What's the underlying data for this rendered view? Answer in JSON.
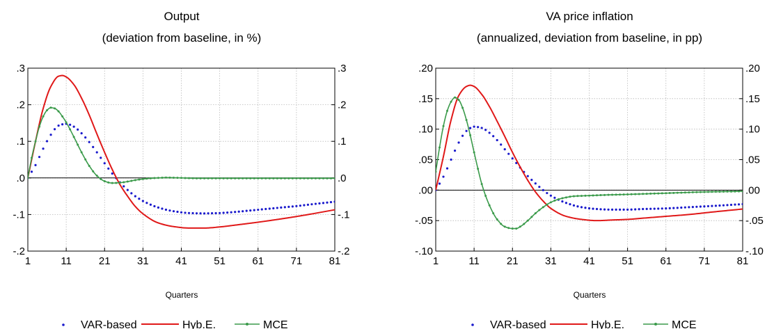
{
  "colors": {
    "var_based": "#1a1acc",
    "hyb_e": "#e01818",
    "mce": "#3a9a4a",
    "grid": "#b8b8b8",
    "axis": "#000000"
  },
  "chart_data": [
    {
      "type": "line",
      "title": "Output",
      "subtitle": "(deviation from baseline, in %)",
      "xlabel": "Quarters",
      "ylabel": "",
      "xlim": [
        1,
        81
      ],
      "x_ticks": [
        1,
        11,
        21,
        31,
        41,
        51,
        61,
        71,
        81
      ],
      "ylim": [
        -0.2,
        0.3
      ],
      "y_ticks": [
        -0.2,
        -0.1,
        0.0,
        0.1,
        0.2,
        0.3
      ],
      "y_tick_labels": [
        "-.2",
        "-.1",
        ".0",
        ".1",
        ".2",
        ".3"
      ],
      "dual_y_axis": true,
      "grid": true,
      "legend_position": "bottom",
      "series": [
        {
          "name": "VAR-based",
          "style": "dots",
          "color_key": "var_based",
          "x": [
            1,
            3,
            5,
            7,
            9,
            11,
            13,
            15,
            17,
            19,
            21,
            23,
            25,
            27,
            29,
            31,
            35,
            39,
            43,
            47,
            51,
            55,
            59,
            63,
            67,
            71,
            75,
            81
          ],
          "values": [
            0.0,
            0.035,
            0.08,
            0.118,
            0.143,
            0.148,
            0.14,
            0.122,
            0.098,
            0.07,
            0.04,
            0.012,
            -0.012,
            -0.033,
            -0.05,
            -0.063,
            -0.081,
            -0.091,
            -0.096,
            -0.097,
            -0.096,
            -0.093,
            -0.089,
            -0.085,
            -0.081,
            -0.077,
            -0.072,
            -0.065
          ]
        },
        {
          "name": "Hyb.E.",
          "style": "line",
          "color_key": "hyb_e",
          "x": [
            1,
            3,
            5,
            7,
            9,
            10,
            11,
            13,
            15,
            17,
            19,
            21,
            23,
            25,
            27,
            29,
            31,
            35,
            39,
            43,
            47,
            51,
            55,
            61,
            67,
            73,
            81
          ],
          "values": [
            0.0,
            0.1,
            0.19,
            0.25,
            0.278,
            0.28,
            0.276,
            0.255,
            0.218,
            0.172,
            0.12,
            0.07,
            0.023,
            -0.018,
            -0.05,
            -0.078,
            -0.098,
            -0.123,
            -0.133,
            -0.137,
            -0.137,
            -0.134,
            -0.129,
            -0.121,
            -0.112,
            -0.102,
            -0.087
          ]
        },
        {
          "name": "MCE",
          "style": "line-markers",
          "color_key": "mce",
          "x": [
            1,
            2,
            3,
            4,
            5,
            6,
            7,
            8,
            9,
            10,
            11,
            13,
            15,
            17,
            19,
            21,
            23,
            25,
            27,
            29,
            31,
            33,
            35,
            37,
            41,
            45,
            51,
            61,
            71,
            81
          ],
          "values": [
            0.0,
            0.055,
            0.1,
            0.14,
            0.168,
            0.185,
            0.192,
            0.19,
            0.182,
            0.168,
            0.152,
            0.112,
            0.07,
            0.033,
            0.006,
            -0.009,
            -0.014,
            -0.013,
            -0.01,
            -0.006,
            -0.003,
            -0.001,
            0.0,
            0.001,
            0.0,
            -0.001,
            -0.001,
            -0.001,
            -0.001,
            -0.001
          ]
        }
      ]
    },
    {
      "type": "line",
      "title": "VA price inflation",
      "subtitle": "(annualized, deviation from baseline, in pp)",
      "xlabel": "Quarters",
      "ylabel": "",
      "xlim": [
        1,
        81
      ],
      "x_ticks": [
        1,
        11,
        21,
        31,
        41,
        51,
        61,
        71,
        81
      ],
      "ylim": [
        -0.1,
        0.2
      ],
      "y_ticks": [
        -0.1,
        -0.05,
        0.0,
        0.05,
        0.1,
        0.15,
        0.2
      ],
      "y_tick_labels": [
        "-.10",
        "-.05",
        ".00",
        ".05",
        ".10",
        ".15",
        ".20"
      ],
      "dual_y_axis": true,
      "grid": true,
      "legend_position": "bottom",
      "series": [
        {
          "name": "VAR-based",
          "style": "dots",
          "color_key": "var_based",
          "x": [
            1,
            3,
            5,
            7,
            9,
            11,
            13,
            15,
            17,
            19,
            21,
            23,
            25,
            27,
            29,
            31,
            35,
            39,
            43,
            47,
            51,
            55,
            61,
            67,
            73,
            81
          ],
          "values": [
            0.0,
            0.022,
            0.05,
            0.078,
            0.097,
            0.104,
            0.102,
            0.094,
            0.082,
            0.067,
            0.052,
            0.037,
            0.023,
            0.011,
            0.0,
            -0.009,
            -0.021,
            -0.028,
            -0.031,
            -0.032,
            -0.032,
            -0.031,
            -0.03,
            -0.028,
            -0.026,
            -0.023
          ]
        },
        {
          "name": "Hyb.E.",
          "style": "line",
          "color_key": "hyb_e",
          "x": [
            1,
            3,
            5,
            7,
            9,
            10,
            11,
            13,
            15,
            17,
            19,
            21,
            23,
            25,
            27,
            29,
            31,
            35,
            39,
            43,
            47,
            51,
            55,
            61,
            67,
            73,
            81
          ],
          "values": [
            0.0,
            0.055,
            0.115,
            0.155,
            0.17,
            0.172,
            0.17,
            0.157,
            0.137,
            0.113,
            0.088,
            0.062,
            0.038,
            0.016,
            -0.003,
            -0.018,
            -0.03,
            -0.043,
            -0.048,
            -0.05,
            -0.049,
            -0.048,
            -0.046,
            -0.043,
            -0.04,
            -0.036,
            -0.031
          ]
        },
        {
          "name": "MCE",
          "style": "line-markers",
          "color_key": "mce",
          "x": [
            1,
            2,
            3,
            4,
            5,
            6,
            7,
            8,
            9,
            10,
            11,
            12,
            13,
            15,
            17,
            19,
            21,
            22,
            23,
            25,
            27,
            29,
            31,
            33,
            35,
            37,
            41,
            45,
            51,
            61,
            71,
            81
          ],
          "values": [
            0.03,
            0.07,
            0.105,
            0.13,
            0.145,
            0.152,
            0.148,
            0.135,
            0.115,
            0.09,
            0.062,
            0.035,
            0.01,
            -0.025,
            -0.048,
            -0.06,
            -0.063,
            -0.063,
            -0.06,
            -0.05,
            -0.038,
            -0.028,
            -0.02,
            -0.015,
            -0.012,
            -0.01,
            -0.009,
            -0.008,
            -0.007,
            -0.005,
            -0.003,
            -0.002
          ]
        }
      ]
    }
  ],
  "panels": [
    {
      "title": "Output",
      "subtitle": "(deviation from baseline, in %)",
      "xlabel": "Quarters",
      "legend": [
        "VAR-based",
        "Hyb.E.",
        "MCE"
      ]
    },
    {
      "title": "VA price inflation",
      "subtitle": "(annualized, deviation from baseline, in pp)",
      "xlabel": "Quarters",
      "legend": [
        "VAR-based",
        "Hyb.E.",
        "MCE"
      ]
    }
  ]
}
